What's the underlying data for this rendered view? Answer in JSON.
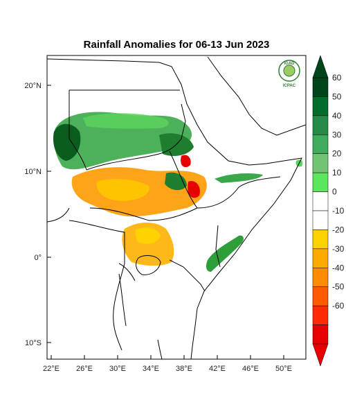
{
  "map": {
    "title": "Rainfall Anomalies for 06-13 Jun 2023",
    "logo": {
      "top_text": "IGAD",
      "bottom_text": "ICPAC"
    },
    "lon_ticks": [
      "22°E",
      "26°E",
      "30°E",
      "34°E",
      "38°E",
      "42°E",
      "46°E",
      "50°E"
    ],
    "lat_ticks": [
      "20°N",
      "10°N",
      "0°",
      "10°S"
    ],
    "extent": {
      "lon": [
        21,
        52
      ],
      "lat": [
        -12,
        23
      ]
    },
    "colors": {
      "strong_wet": "#0b5d1e",
      "wet": "#2e9e3a",
      "light_wet": "#5cd35c",
      "neutral": "#ffffff",
      "light_dry": "#ffc400",
      "dry": "#ff9900",
      "strong_dry": "#e60000"
    }
  },
  "colorbar": {
    "labels": [
      "60",
      "50",
      "40",
      "30",
      "20",
      "10",
      "0",
      "-10",
      "-20",
      "-30",
      "-40",
      "-50",
      "-60"
    ],
    "colors": [
      "#00441b",
      "#006d2c",
      "#238b45",
      "#41ab5d",
      "#74c476",
      "#5ce65c",
      "#ffffff",
      "#ffffff",
      "#ffd200",
      "#ffaa00",
      "#ff8c00",
      "#ff5a00",
      "#ff2a00",
      "#e60000"
    ]
  }
}
